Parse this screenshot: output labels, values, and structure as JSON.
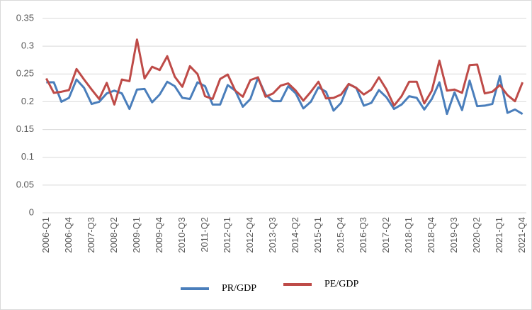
{
  "chart_data": {
    "type": "line",
    "categories": [
      "2006-Q1",
      null,
      null,
      "2006-Q4",
      null,
      null,
      "2007-Q3",
      null,
      null,
      "2008-Q2",
      null,
      null,
      "2009-Q1",
      null,
      null,
      "2009-Q4",
      null,
      null,
      "2010-Q3",
      null,
      null,
      "2011-Q2",
      null,
      null,
      "2012-Q1",
      null,
      null,
      "2012-Q4",
      null,
      null,
      "2013-Q3",
      null,
      null,
      "2014-Q2",
      null,
      null,
      "2015-Q1",
      null,
      null,
      "2015-Q4",
      null,
      null,
      "2016-Q3",
      null,
      null,
      "2017-Q2",
      null,
      null,
      "2018-Q1",
      null,
      null,
      "2018-Q4",
      null,
      null,
      "2019-Q3",
      null,
      null,
      "2020-Q2",
      null,
      null,
      "2021-Q1",
      null,
      null,
      "2021-Q4"
    ],
    "series": [
      {
        "name": "PR/GDP",
        "color": "#4a7ebb",
        "values": [
          0.235,
          0.235,
          0.2,
          0.207,
          0.24,
          0.225,
          0.196,
          0.2,
          0.215,
          0.22,
          0.215,
          0.187,
          0.222,
          0.223,
          0.199,
          0.213,
          0.236,
          0.228,
          0.207,
          0.205,
          0.235,
          0.228,
          0.195,
          0.195,
          0.23,
          0.22,
          0.191,
          0.205,
          0.243,
          0.213,
          0.201,
          0.201,
          0.228,
          0.215,
          0.188,
          0.2,
          0.226,
          0.218,
          0.184,
          0.198,
          0.232,
          0.225,
          0.193,
          0.198,
          0.221,
          0.208,
          0.187,
          0.195,
          0.21,
          0.207,
          0.186,
          0.205,
          0.235,
          0.178,
          0.217,
          0.185,
          0.238,
          0.192,
          0.193,
          0.196,
          0.246,
          0.18,
          0.186,
          0.178
        ]
      },
      {
        "name": "PE/GDP",
        "color": "#be4b48",
        "values": [
          0.242,
          0.216,
          0.218,
          0.221,
          0.259,
          0.24,
          0.222,
          0.205,
          0.234,
          0.195,
          0.24,
          0.237,
          0.312,
          0.242,
          0.263,
          0.257,
          0.282,
          0.245,
          0.227,
          0.264,
          0.25,
          0.21,
          0.205,
          0.241,
          0.249,
          0.22,
          0.209,
          0.239,
          0.244,
          0.209,
          0.215,
          0.229,
          0.233,
          0.22,
          0.202,
          0.218,
          0.236,
          0.206,
          0.207,
          0.213,
          0.232,
          0.225,
          0.213,
          0.222,
          0.244,
          0.222,
          0.193,
          0.21,
          0.236,
          0.236,
          0.197,
          0.22,
          0.274,
          0.22,
          0.222,
          0.216,
          0.266,
          0.267,
          0.215,
          0.218,
          0.23,
          0.212,
          0.201,
          0.235
        ]
      }
    ],
    "ylim": [
      0,
      0.35
    ],
    "yticks": [
      0,
      0.05,
      0.1,
      0.15,
      0.2,
      0.25,
      0.3,
      0.35
    ],
    "grid": true,
    "legend": "bottom"
  }
}
